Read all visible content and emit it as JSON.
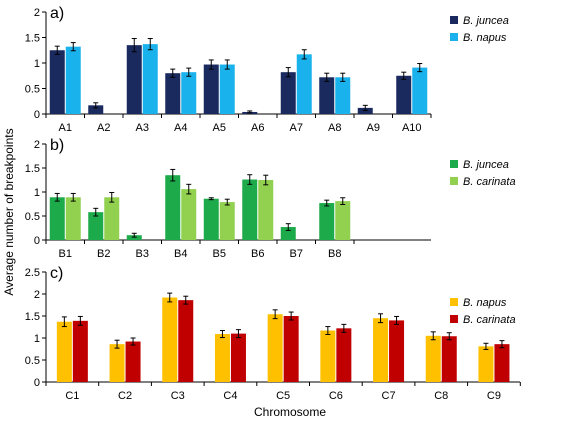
{
  "ylabel": "Average number of breakpoints",
  "xlabel": "Chromosome",
  "chart_data": [
    {
      "type": "bar",
      "panel_label": "a)",
      "categories": [
        "A1",
        "A2",
        "A3",
        "A4",
        "A5",
        "A6",
        "A7",
        "A8",
        "A9",
        "A10"
      ],
      "ylim": [
        0,
        2
      ],
      "yticks": [
        "0",
        "0.5",
        "1",
        "1.5",
        "2"
      ],
      "legend_position": "top-right",
      "grid": false,
      "series": [
        {
          "name": "B. juncea",
          "color": "#1a2a5e",
          "values": [
            1.25,
            0.17,
            1.35,
            0.8,
            0.97,
            0.04,
            0.82,
            0.72,
            0.12,
            0.75
          ],
          "errors": [
            0.08,
            0.05,
            0.13,
            0.08,
            0.09,
            0.02,
            0.09,
            0.08,
            0.05,
            0.07
          ]
        },
        {
          "name": "B. napus",
          "color": "#1ab2ec",
          "values": [
            1.32,
            null,
            1.37,
            0.82,
            0.97,
            null,
            1.17,
            0.72,
            null,
            0.91
          ],
          "errors": [
            0.08,
            null,
            0.11,
            0.08,
            0.09,
            null,
            0.09,
            0.08,
            null,
            0.08
          ]
        }
      ]
    },
    {
      "type": "bar",
      "panel_label": "b)",
      "categories": [
        "B1",
        "B2",
        "B3",
        "B4",
        "B5",
        "B6",
        "B7",
        "B8"
      ],
      "ylim": [
        0,
        2
      ],
      "yticks": [
        "0",
        "0.5",
        "1",
        "1.5",
        "2"
      ],
      "legend_position": "top-right",
      "grid": false,
      "series": [
        {
          "name": "B. juncea",
          "color": "#1daa4b",
          "values": [
            0.89,
            0.58,
            0.1,
            1.35,
            0.86,
            1.26,
            0.27,
            0.77
          ],
          "errors": [
            0.08,
            0.08,
            0.04,
            0.12,
            0.02,
            0.1,
            0.07,
            0.06
          ]
        },
        {
          "name": "B. carinata",
          "color": "#92d050",
          "values": [
            0.89,
            0.89,
            null,
            1.06,
            0.79,
            1.25,
            null,
            0.81
          ],
          "errors": [
            0.08,
            0.1,
            null,
            0.1,
            0.06,
            0.1,
            null,
            0.07
          ]
        }
      ]
    },
    {
      "type": "bar",
      "panel_label": "c)",
      "categories": [
        "C1",
        "C2",
        "C3",
        "C4",
        "C5",
        "C6",
        "C7",
        "C8",
        "C9"
      ],
      "ylim": [
        0,
        2.5
      ],
      "yticks": [
        "0",
        "0.5",
        "1",
        "1.5",
        "2",
        "2.5"
      ],
      "legend_position": "top-right",
      "grid": false,
      "series": [
        {
          "name": "B. napus",
          "color": "#ffc000",
          "values": [
            1.37,
            0.86,
            1.92,
            1.09,
            1.54,
            1.17,
            1.45,
            1.05,
            0.81
          ],
          "errors": [
            0.11,
            0.09,
            0.1,
            0.08,
            0.1,
            0.09,
            0.1,
            0.09,
            0.07
          ]
        },
        {
          "name": "B. carinata",
          "color": "#c00000",
          "values": [
            1.39,
            0.92,
            1.86,
            1.1,
            1.5,
            1.22,
            1.4,
            1.04,
            0.86
          ],
          "errors": [
            0.1,
            0.08,
            0.09,
            0.09,
            0.09,
            0.09,
            0.09,
            0.08,
            0.08
          ]
        }
      ]
    }
  ]
}
